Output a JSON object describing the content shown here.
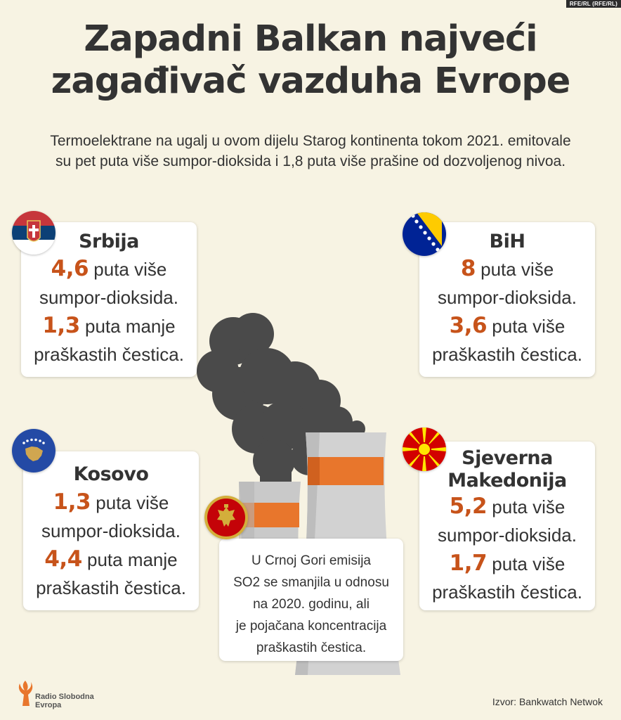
{
  "credit": "RFE/RL (RFE/RL)",
  "title_line1": "Zapadni Balkan najveći",
  "title_line2": "zagađivač vazduha Evrope",
  "subtitle_line1": "Termoelektrane na ugalj u ovom dijelu Starog kontinenta tokom 2021. emitovale",
  "subtitle_line2": "su pet puta više sumpor-dioksida i 1,8 puta više prašine od dozvoljenog nivoa.",
  "countries": {
    "serbia": {
      "name": "Srbija",
      "so2_value": "4,6",
      "so2_text": " puta više",
      "so2_label": "sumpor-dioksida.",
      "pm_value": "1,3",
      "pm_text": " puta manje",
      "pm_label": "praškastih čestica."
    },
    "bih": {
      "name": "BiH",
      "so2_value": "8",
      "so2_text": " puta više",
      "so2_label": "sumpor-dioksida.",
      "pm_value": "3,6",
      "pm_text": " puta više",
      "pm_label": "praškastih čestica."
    },
    "kosovo": {
      "name": "Kosovo",
      "so2_value": "1,3",
      "so2_text": " puta više",
      "so2_label": "sumpor-dioksida.",
      "pm_value": "4,4",
      "pm_text": " puta manje",
      "pm_label": "praškastih čestica."
    },
    "north_macedonia": {
      "name_line1": "Sjeverna",
      "name_line2": "Makedonija",
      "so2_value": "5,2",
      "so2_text": " puta više",
      "so2_label": "sumpor-dioksida.",
      "pm_value": "1,7",
      "pm_text": " puta više",
      "pm_label": "praškastih čestica."
    }
  },
  "montenegro_note": {
    "line1": "U Crnoj Gori emisija",
    "line2": "SO2 se smanjila u odnosu",
    "line3": "na 2020. godinu, ali",
    "line4": "je pojačana koncentracija",
    "line5": "praškastih čestica."
  },
  "logo": {
    "line1": "Radio Slobodna",
    "line2": "Evropa"
  },
  "source": "Izvor: Bankwatch Netwok",
  "colors": {
    "background": "#f7f3e3",
    "accent_orange": "#c7531a",
    "smoke": "#4a4a4a",
    "tower_grey": "#c9c9c9",
    "tower_band": "#e8762c"
  }
}
